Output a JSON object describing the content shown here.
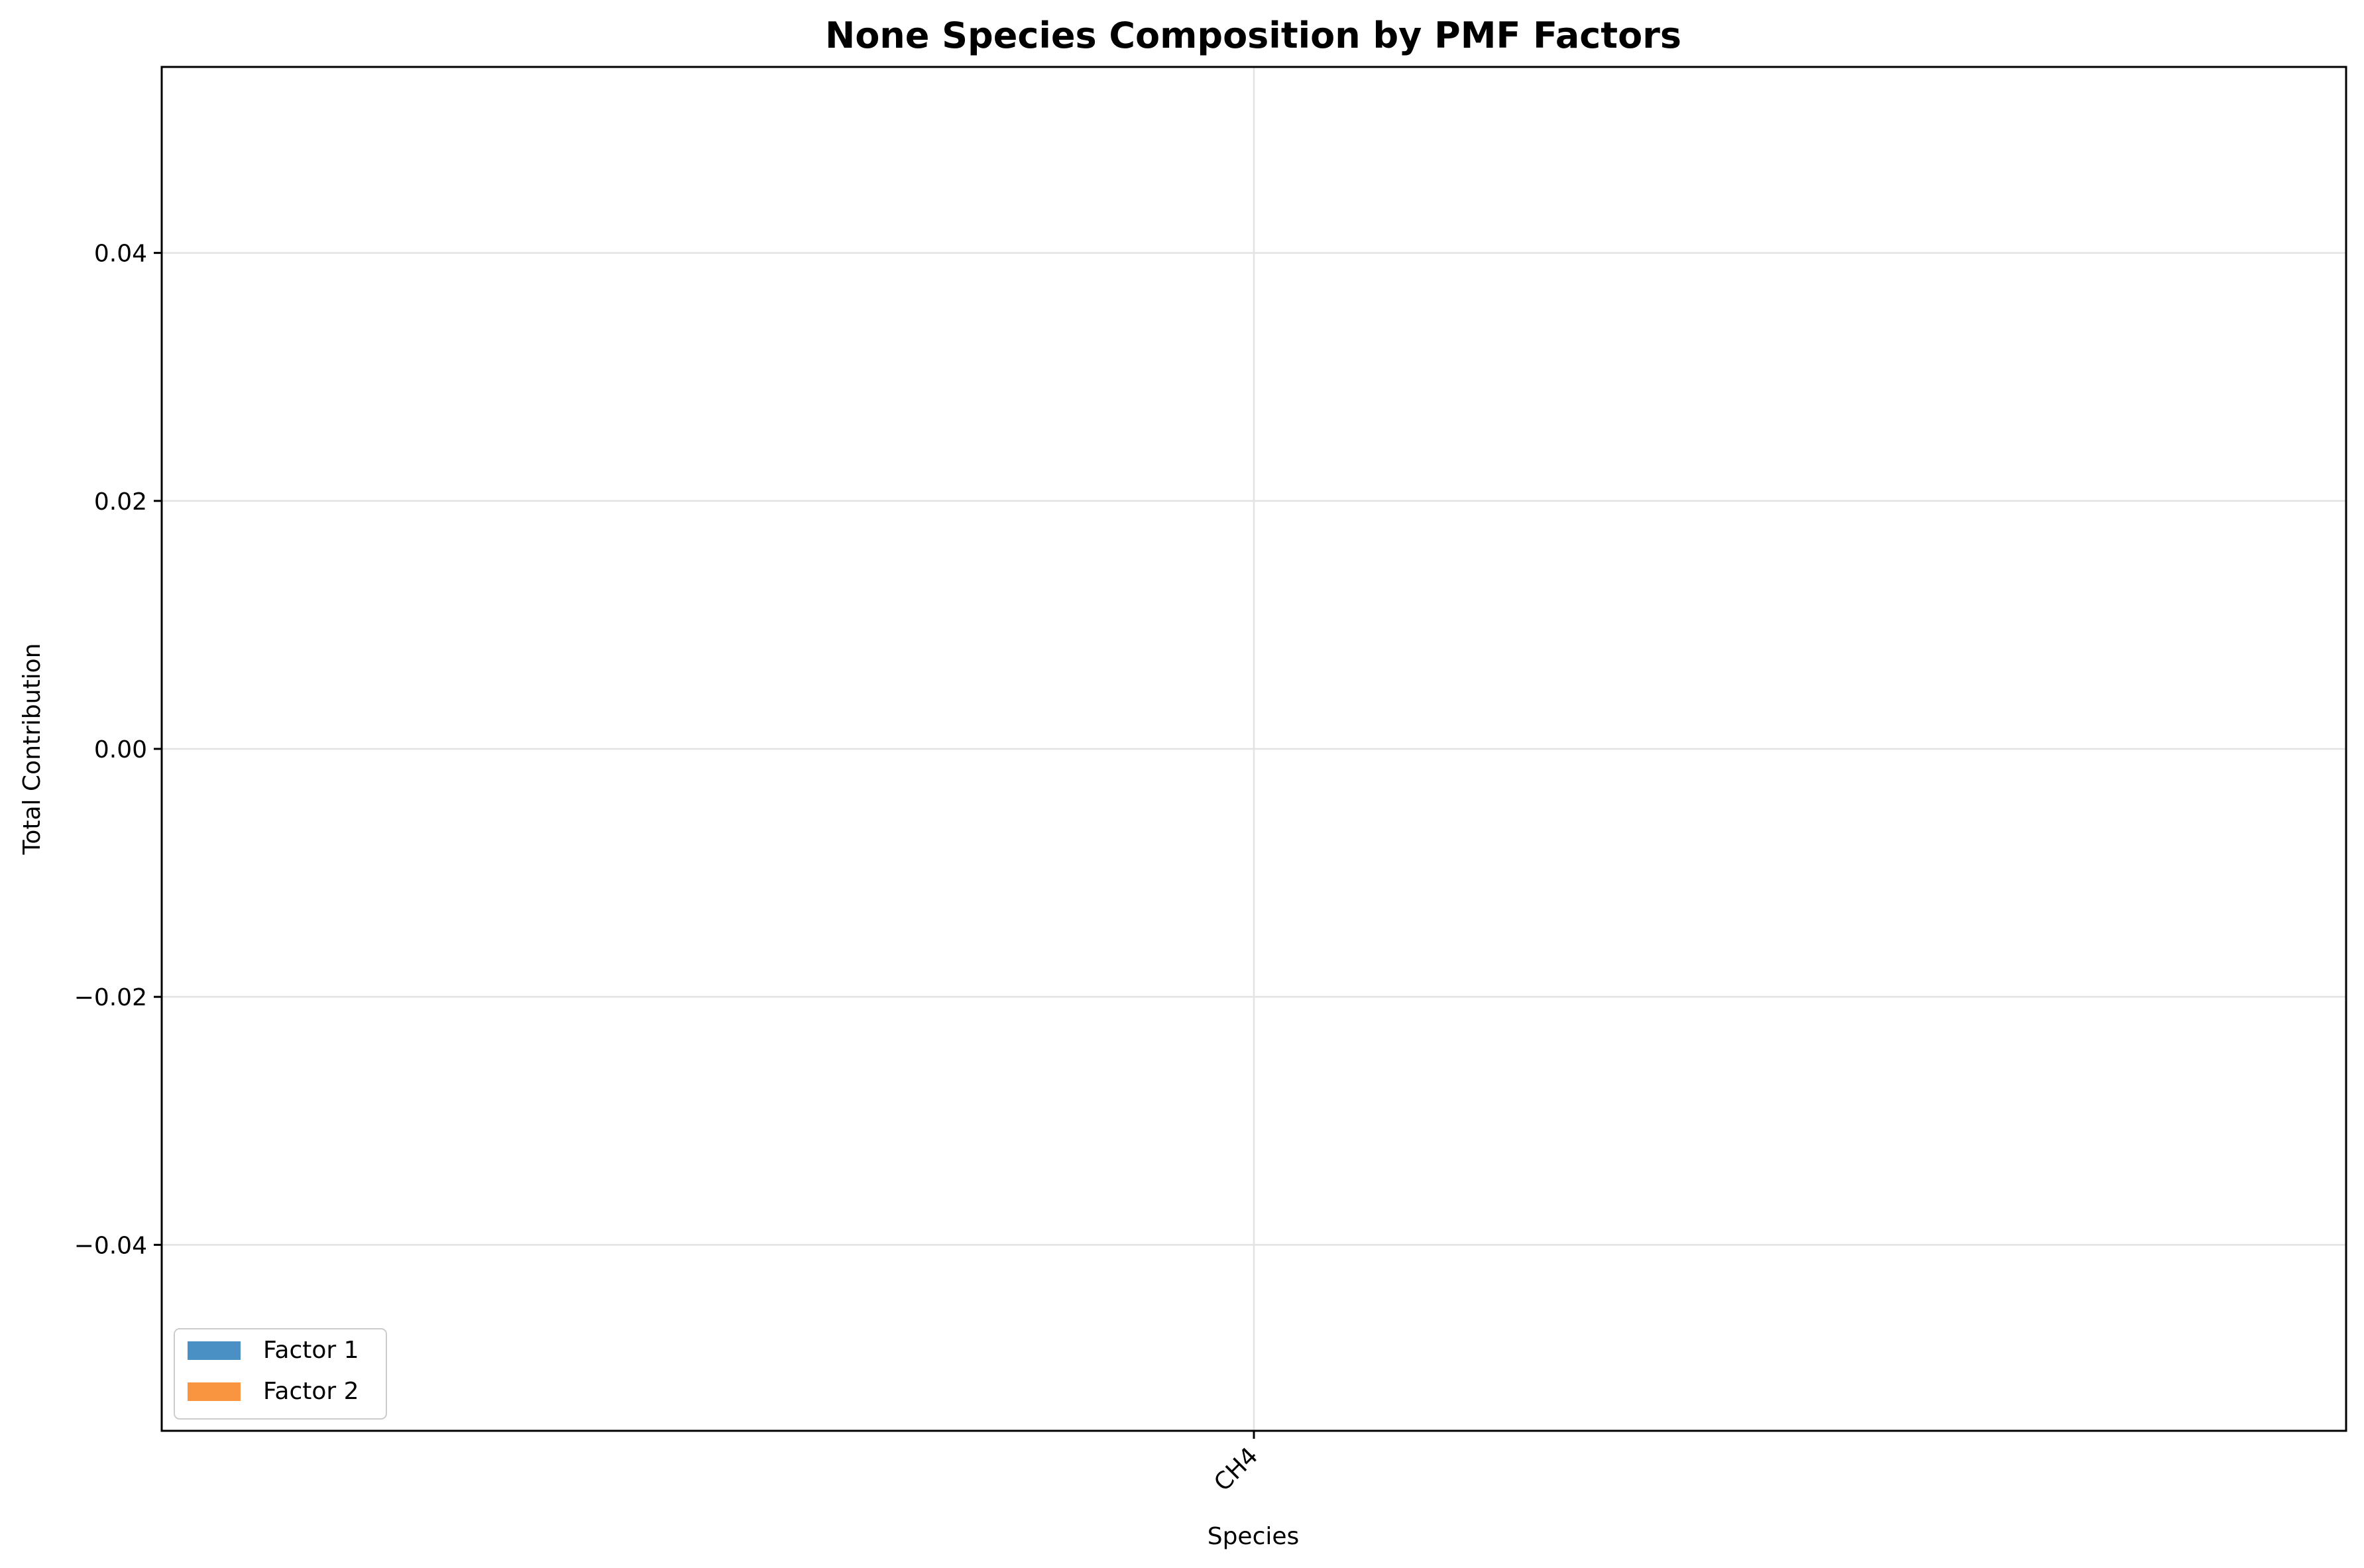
{
  "chart_data": {
    "type": "bar",
    "stacked": true,
    "title": "None Species Composition by PMF Factors",
    "xlabel": "Species",
    "ylabel": "Total Contribution",
    "categories": [
      "CH4"
    ],
    "series": [
      {
        "name": "Factor 1",
        "values": [
          0
        ],
        "color": "#4a90c4"
      },
      {
        "name": "Factor 2",
        "values": [
          0
        ],
        "color": "#f99540"
      }
    ],
    "ylim": [
      -0.055,
      0.055
    ],
    "yticks": [
      -0.04,
      -0.02,
      0.0,
      0.02,
      0.04
    ],
    "ytick_labels": [
      "−0.04",
      "−0.02",
      "0.00",
      "0.02",
      "0.04"
    ],
    "x_tick_rotation": "45 degrees",
    "grid": true,
    "legend_position": "lower-left"
  }
}
